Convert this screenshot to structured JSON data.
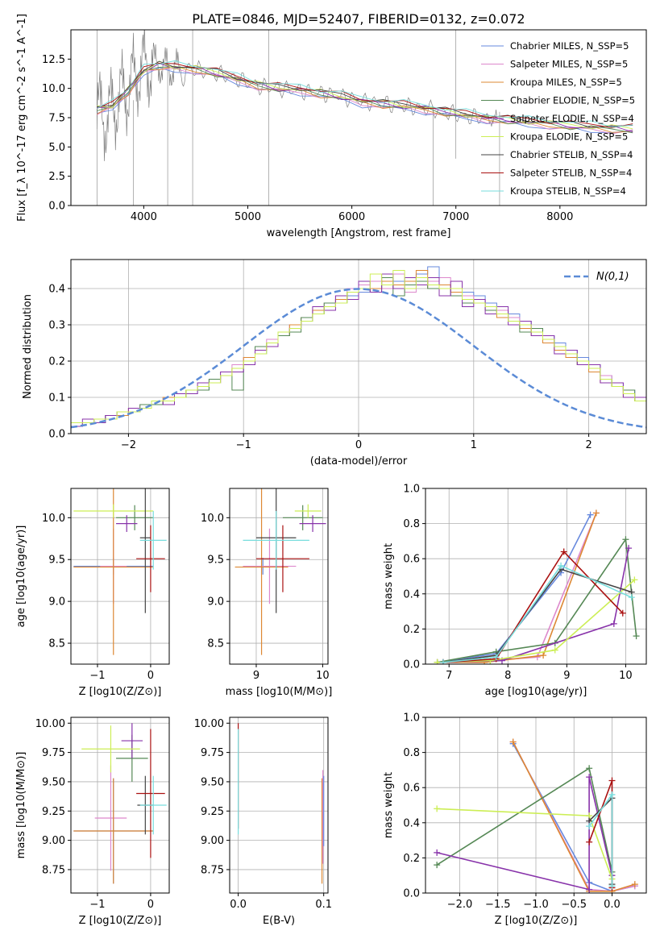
{
  "figure_title": "PLATE=0846, MJD=52407, FIBERID=0132, z=0.072",
  "model_colors": [
    "#6688dd",
    "#dd88cc",
    "#dd8833",
    "#558855",
    "#8833aa",
    "#ccee55",
    "#444444",
    "#aa1111",
    "#77dddd"
  ],
  "chart_data": [
    {
      "id": "spectrum",
      "type": "line",
      "title": "PLATE=0846, MJD=52407, FIBERID=0132, z=0.072",
      "xlabel": "wavelength [Angstrom, rest frame]",
      "ylabel": "Flux [f_λ 10^-17 erg cm^-2 s^-1 A^-1]",
      "xlim": [
        3300,
        8830
      ],
      "ylim": [
        0,
        15.0
      ],
      "xticks": [
        4000,
        5000,
        6000,
        7000,
        8000
      ],
      "yticks": [
        0.0,
        2.5,
        5.0,
        7.5,
        10.0,
        12.5
      ],
      "grid": false,
      "legend_position": "top-right",
      "legend": [
        "Chabrier MILES, N_SSP=5",
        "Salpeter MILES, N_SSP=5",
        "Kroupa MILES, N_SSP=5",
        "Chabrier ELODIE, N_SSP=5",
        "Salpeter ELODIE, N_SSP=4",
        "Kroupa ELODIE, N_SSP=5",
        "Chabrier STELIB, N_SSP=4",
        "Salpeter STELIB, N_SSP=4",
        "Kroupa STELIB, N_SSP=4"
      ],
      "data_series": {
        "name": "data",
        "color": "#808080",
        "x": [
          3550,
          3650,
          3750,
          3850,
          3950,
          4050,
          4150,
          4250,
          4350,
          4500,
          4700,
          4900,
          5100,
          5300,
          5500,
          5700,
          5900,
          6100,
          6300,
          6500,
          6700,
          6900,
          7100,
          7300,
          7400
        ],
        "y": [
          8.0,
          7.5,
          9.0,
          10.0,
          11.5,
          12.0,
          12.0,
          11.7,
          11.6,
          11.6,
          11.3,
          10.8,
          10.2,
          10.0,
          9.8,
          9.6,
          9.3,
          8.9,
          8.7,
          8.5,
          8.3,
          8.0,
          7.6,
          7.5,
          7.4
        ]
      },
      "model_series": {
        "name": "Kroupa STELIB, N_SSP=4",
        "x": [
          3550,
          3700,
          3850,
          4000,
          4150,
          4300,
          4500,
          4700,
          4900,
          5100,
          5300,
          5500,
          5700,
          5900,
          6100,
          6300,
          6500,
          6700,
          6900,
          7100,
          7300,
          7500,
          7700,
          7900,
          8100,
          8300,
          8500,
          8700
        ],
        "y": [
          8.2,
          8.5,
          9.8,
          11.5,
          12.0,
          11.8,
          11.7,
          11.3,
          10.8,
          10.3,
          10.0,
          9.9,
          9.6,
          9.3,
          8.9,
          8.7,
          8.5,
          8.3,
          8.0,
          7.7,
          7.5,
          7.3,
          7.1,
          7.0,
          6.8,
          6.7,
          6.6,
          6.5
        ]
      }
    },
    {
      "id": "residuals",
      "type": "histogram",
      "xlabel": "(data-model)/error",
      "ylabel": "Normed distribution",
      "xlim": [
        -2.5,
        2.5
      ],
      "ylim": [
        0,
        0.48
      ],
      "xticks": [
        -2,
        -1,
        0,
        1,
        2
      ],
      "yticks": [
        0.0,
        0.1,
        0.2,
        0.3,
        0.4
      ],
      "grid": true,
      "legend_position": "top-right",
      "reference_curve": {
        "name": "N(0,1)",
        "color": "#5b8bd6",
        "style": "dashed"
      },
      "bin_width": 0.1,
      "bins_start": -2.5,
      "histograms": [
        [
          0.03,
          0.03,
          0.04,
          0.05,
          0.05,
          0.06,
          0.07,
          0.08,
          0.09,
          0.1,
          0.11,
          0.12,
          0.14,
          0.16,
          0.18,
          0.2,
          0.22,
          0.25,
          0.27,
          0.29,
          0.31,
          0.33,
          0.35,
          0.37,
          0.38,
          0.39,
          0.4,
          0.41,
          0.42,
          0.43,
          0.44,
          0.46,
          0.41,
          0.4,
          0.39,
          0.38,
          0.36,
          0.34,
          0.33,
          0.31,
          0.29,
          0.27,
          0.25,
          0.23,
          0.21,
          0.19,
          0.16,
          0.14,
          0.12,
          0.1
        ],
        [
          0.03,
          0.03,
          0.04,
          0.05,
          0.06,
          0.06,
          0.08,
          0.09,
          0.09,
          0.11,
          0.12,
          0.13,
          0.15,
          0.17,
          0.19,
          0.21,
          0.23,
          0.26,
          0.28,
          0.3,
          0.32,
          0.34,
          0.36,
          0.38,
          0.4,
          0.41,
          0.42,
          0.4,
          0.44,
          0.39,
          0.41,
          0.42,
          0.43,
          0.39,
          0.38,
          0.37,
          0.35,
          0.34,
          0.32,
          0.3,
          0.28,
          0.26,
          0.24,
          0.22,
          0.2,
          0.18,
          0.16,
          0.13,
          0.11,
          0.09
        ],
        [
          0.02,
          0.03,
          0.04,
          0.04,
          0.05,
          0.07,
          0.07,
          0.08,
          0.1,
          0.1,
          0.12,
          0.13,
          0.14,
          0.16,
          0.18,
          0.21,
          0.23,
          0.25,
          0.27,
          0.3,
          0.32,
          0.34,
          0.35,
          0.37,
          0.39,
          0.4,
          0.4,
          0.42,
          0.41,
          0.42,
          0.45,
          0.4,
          0.41,
          0.39,
          0.37,
          0.36,
          0.34,
          0.32,
          0.31,
          0.29,
          0.27,
          0.25,
          0.23,
          0.21,
          0.19,
          0.17,
          0.14,
          0.13,
          0.1,
          0.09
        ],
        [
          0.03,
          0.03,
          0.03,
          0.05,
          0.06,
          0.06,
          0.08,
          0.08,
          0.09,
          0.1,
          0.12,
          0.12,
          0.15,
          0.16,
          0.12,
          0.19,
          0.24,
          0.25,
          0.27,
          0.28,
          0.32,
          0.33,
          0.36,
          0.36,
          0.39,
          0.4,
          0.39,
          0.43,
          0.38,
          0.41,
          0.42,
          0.4,
          0.4,
          0.38,
          0.36,
          0.36,
          0.34,
          0.33,
          0.31,
          0.28,
          0.29,
          0.26,
          0.24,
          0.22,
          0.19,
          0.18,
          0.15,
          0.13,
          0.12,
          0.09
        ],
        [
          0.02,
          0.04,
          0.03,
          0.05,
          0.06,
          0.07,
          0.07,
          0.09,
          0.08,
          0.11,
          0.11,
          0.14,
          0.14,
          0.17,
          0.17,
          0.19,
          0.23,
          0.24,
          0.28,
          0.29,
          0.31,
          0.35,
          0.34,
          0.38,
          0.37,
          0.42,
          0.39,
          0.44,
          0.4,
          0.43,
          0.41,
          0.43,
          0.38,
          0.42,
          0.35,
          0.37,
          0.33,
          0.35,
          0.3,
          0.31,
          0.27,
          0.27,
          0.22,
          0.23,
          0.19,
          0.19,
          0.14,
          0.14,
          0.1,
          0.1
        ],
        [
          0.03,
          0.03,
          0.04,
          0.04,
          0.06,
          0.06,
          0.07,
          0.09,
          0.09,
          0.1,
          0.12,
          0.13,
          0.14,
          0.16,
          0.18,
          0.2,
          0.22,
          0.25,
          0.28,
          0.29,
          0.31,
          0.33,
          0.35,
          0.36,
          0.39,
          0.4,
          0.44,
          0.41,
          0.45,
          0.4,
          0.43,
          0.41,
          0.4,
          0.4,
          0.37,
          0.36,
          0.35,
          0.33,
          0.31,
          0.3,
          0.28,
          0.26,
          0.24,
          0.22,
          0.2,
          0.18,
          0.15,
          0.13,
          0.11,
          0.09
        ]
      ],
      "gaussian": {
        "mu": 0,
        "sigma": 1
      }
    },
    {
      "id": "age-vs-Z",
      "type": "errorbar",
      "xlabel": "Z [log10(Z/Z⊙)]",
      "ylabel": "age [log10(age/yr)]",
      "xlim": [
        -1.5,
        0.35
      ],
      "ylim": [
        8.25,
        10.35
      ],
      "xticks": [
        -1,
        0
      ],
      "yticks": [
        8.5,
        9.0,
        9.5,
        10.0
      ],
      "grid": true,
      "points": [
        {
          "x": -0.7,
          "xerr": 0.75,
          "y": 9.42,
          "yerr": 0.1,
          "c": 0
        },
        {
          "x": -0.7,
          "xerr": 0.25,
          "y": 9.42,
          "yerr": 0.45,
          "c": 1
        },
        {
          "x": -0.7,
          "xerr": 0.75,
          "y": 9.41,
          "yerr": 1.05,
          "c": 2
        },
        {
          "x": -0.3,
          "xerr": 0.35,
          "y": 10.0,
          "yerr": 0.15,
          "c": 3
        },
        {
          "x": -0.45,
          "xerr": 0.2,
          "y": 9.93,
          "yerr": 0.1,
          "c": 4
        },
        {
          "x": -0.7,
          "xerr": 0.75,
          "y": 10.08,
          "yerr": 0.08,
          "c": 5
        },
        {
          "x": -0.1,
          "xerr": 0.1,
          "y": 9.76,
          "yerr": 0.9,
          "c": 6
        },
        {
          "x": 0.0,
          "xerr": 0.27,
          "y": 9.51,
          "yerr": 0.4,
          "c": 7
        },
        {
          "x": 0.05,
          "xerr": 0.25,
          "y": 9.73,
          "yerr": 0.35,
          "c": 8
        }
      ]
    },
    {
      "id": "age-vs-mass",
      "type": "errorbar",
      "xlabel": "mass [log10(M/M⊙)]",
      "ylabel": "",
      "xlim": [
        8.6,
        10.08
      ],
      "ylim": [
        8.25,
        10.35
      ],
      "xticks": [
        9,
        10
      ],
      "yticks": [
        8.5,
        9.0,
        9.5,
        10.0
      ],
      "grid": true,
      "points": [
        {
          "x": 9.1,
          "xerr": 0.3,
          "y": 9.42,
          "yerr": 0.1,
          "c": 0
        },
        {
          "x": 9.2,
          "xerr": 0.4,
          "y": 9.42,
          "yerr": 0.45,
          "c": 1
        },
        {
          "x": 9.08,
          "xerr": 0.4,
          "y": 9.41,
          "yerr": 1.05,
          "c": 2
        },
        {
          "x": 9.7,
          "xerr": 0.3,
          "y": 10.0,
          "yerr": 0.15,
          "c": 3
        },
        {
          "x": 9.85,
          "xerr": 0.2,
          "y": 9.93,
          "yerr": 0.1,
          "c": 4
        },
        {
          "x": 9.78,
          "xerr": 0.2,
          "y": 10.08,
          "yerr": 0.08,
          "c": 5
        },
        {
          "x": 9.3,
          "xerr": 0.3,
          "y": 9.76,
          "yerr": 0.9,
          "c": 6
        },
        {
          "x": 9.4,
          "xerr": 0.4,
          "y": 9.51,
          "yerr": 0.4,
          "c": 7
        },
        {
          "x": 9.3,
          "xerr": 0.5,
          "y": 9.73,
          "yerr": 0.35,
          "c": 8
        }
      ]
    },
    {
      "id": "mass-weight-vs-age",
      "type": "line",
      "xlabel": "age [log10(age/yr)]",
      "ylabel": "mass weight",
      "xlim": [
        6.6,
        10.35
      ],
      "ylim": [
        0,
        1.0
      ],
      "xticks": [
        7,
        8,
        9,
        10
      ],
      "yticks": [
        0.0,
        0.2,
        0.4,
        0.6,
        0.8,
        1.0
      ],
      "grid": true,
      "series": [
        {
          "c": 0,
          "x": [
            6.8,
            7.8,
            8.9,
            9.4
          ],
          "y": [
            0.01,
            0.06,
            0.52,
            0.85
          ]
        },
        {
          "c": 1,
          "x": [
            6.8,
            7.7,
            8.5,
            9.5
          ],
          "y": [
            0.01,
            0.02,
            0.04,
            0.86
          ]
        },
        {
          "c": 2,
          "x": [
            6.8,
            7.6,
            8.6,
            9.5
          ],
          "y": [
            0.01,
            0.01,
            0.05,
            0.86
          ]
        },
        {
          "c": 3,
          "x": [
            6.8,
            7.8,
            8.8,
            10.0,
            10.18
          ],
          "y": [
            0.01,
            0.07,
            0.12,
            0.71,
            0.16
          ]
        },
        {
          "c": 4,
          "x": [
            6.9,
            7.9,
            9.8,
            10.05
          ],
          "y": [
            0.01,
            0.02,
            0.23,
            0.66
          ]
        },
        {
          "c": 5,
          "x": [
            6.8,
            7.7,
            8.8,
            10.15
          ],
          "y": [
            0.01,
            0.02,
            0.08,
            0.48
          ]
        },
        {
          "c": 6,
          "x": [
            6.9,
            7.8,
            8.9,
            10.1
          ],
          "y": [
            0.01,
            0.05,
            0.54,
            0.41
          ]
        },
        {
          "c": 7,
          "x": [
            6.9,
            7.8,
            8.95,
            9.95
          ],
          "y": [
            0.01,
            0.03,
            0.64,
            0.29
          ]
        },
        {
          "c": 8,
          "x": [
            6.9,
            7.8,
            8.9,
            10.1
          ],
          "y": [
            0.01,
            0.04,
            0.56,
            0.38
          ]
        }
      ]
    },
    {
      "id": "mass-vs-Z",
      "type": "errorbar",
      "xlabel": "Z [log10(Z/Z⊙)]",
      "ylabel": "mass [log10(M/M⊙)]",
      "xlim": [
        -1.5,
        0.35
      ],
      "ylim": [
        8.55,
        10.05
      ],
      "xticks": [
        -1,
        0
      ],
      "yticks": [
        8.75,
        9.0,
        9.25,
        9.5,
        9.75,
        10.0
      ],
      "grid": true,
      "points": [
        {
          "x": -0.7,
          "xerr": 0.75,
          "y": 9.08,
          "yerr": 0.45,
          "c": 0
        },
        {
          "x": -0.75,
          "xerr": 0.3,
          "y": 9.19,
          "yerr": 0.45,
          "c": 1
        },
        {
          "x": -0.7,
          "xerr": 0.75,
          "y": 9.08,
          "yerr": 0.45,
          "c": 2
        },
        {
          "x": -0.35,
          "xerr": 0.3,
          "y": 9.7,
          "yerr": 0.2,
          "c": 3
        },
        {
          "x": -0.35,
          "xerr": 0.2,
          "y": 9.85,
          "yerr": 0.15,
          "c": 4
        },
        {
          "x": -0.75,
          "xerr": 0.55,
          "y": 9.78,
          "yerr": 0.2,
          "c": 5
        },
        {
          "x": -0.1,
          "xerr": 0.15,
          "y": 9.3,
          "yerr": 0.25,
          "c": 6
        },
        {
          "x": 0.0,
          "xerr": 0.27,
          "y": 9.4,
          "yerr": 0.55,
          "c": 7
        },
        {
          "x": 0.05,
          "xerr": 0.25,
          "y": 9.3,
          "yerr": 0.25,
          "c": 8
        }
      ]
    },
    {
      "id": "mass-vs-EBV",
      "type": "errorbar",
      "xlabel": "E(B-V)",
      "ylabel": "",
      "xlim": [
        -0.01,
        0.105
      ],
      "ylim": [
        8.55,
        10.05
      ],
      "xticks": [
        0.0,
        0.1
      ],
      "yticks": [
        8.75,
        9.0,
        9.25,
        9.5,
        9.75,
        10.0
      ],
      "grid": true,
      "points": [
        {
          "x": 0.0,
          "xerr": 0,
          "y": 9.55,
          "yerr": 0.45,
          "c": 7
        },
        {
          "x": 0.0,
          "xerr": 0,
          "y": 9.5,
          "yerr": 0.45,
          "c": 8
        },
        {
          "x": 0.098,
          "xerr": 0,
          "y": 9.08,
          "yerr": 0.45,
          "c": 2
        },
        {
          "x": 0.099,
          "xerr": 0,
          "y": 9.2,
          "yerr": 0.4,
          "c": 1
        },
        {
          "x": 0.1,
          "xerr": 0,
          "y": 9.25,
          "yerr": 0.3,
          "c": 0
        }
      ]
    },
    {
      "id": "mass-weight-vs-Z",
      "type": "line",
      "xlabel": "Z [log10(Z/Z⊙)]",
      "ylabel": "mass weight",
      "xlim": [
        -2.45,
        0.45
      ],
      "ylim": [
        0,
        1.0
      ],
      "xticks": [
        -2.0,
        -1.5,
        -1.0,
        -0.5,
        0.0
      ],
      "yticks": [
        0.0,
        0.2,
        0.4,
        0.6,
        0.8,
        1.0
      ],
      "grid": true,
      "series": [
        {
          "c": 0,
          "x": [
            -1.3,
            -0.3,
            0.0,
            0.3
          ],
          "y": [
            0.85,
            0.06,
            0.01,
            0.04
          ]
        },
        {
          "c": 1,
          "x": [
            -1.3,
            -0.3,
            0.0,
            0.3
          ],
          "y": [
            0.86,
            0.02,
            0.01,
            0.04
          ]
        },
        {
          "c": 2,
          "x": [
            -1.3,
            -0.3,
            0.0,
            0.3
          ],
          "y": [
            0.86,
            0.01,
            0.01,
            0.05
          ]
        },
        {
          "c": 3,
          "x": [
            -2.3,
            -0.3,
            0.0
          ],
          "y": [
            0.16,
            0.71,
            0.12
          ]
        },
        {
          "c": 4,
          "x": [
            -2.3,
            -0.3,
            -0.3,
            0.0
          ],
          "y": [
            0.23,
            0.02,
            0.66,
            0.1
          ]
        },
        {
          "c": 5,
          "x": [
            -2.3,
            -0.3,
            0.0
          ],
          "y": [
            0.48,
            0.44,
            0.08
          ]
        },
        {
          "c": 6,
          "x": [
            -0.3,
            0.0,
            0.0
          ],
          "y": [
            0.41,
            0.54,
            0.05
          ]
        },
        {
          "c": 7,
          "x": [
            -0.3,
            0.0,
            0.0
          ],
          "y": [
            0.29,
            0.64,
            0.03
          ]
        },
        {
          "c": 8,
          "x": [
            -0.3,
            0.0,
            0.0
          ],
          "y": [
            0.38,
            0.56,
            0.04
          ]
        }
      ]
    }
  ]
}
